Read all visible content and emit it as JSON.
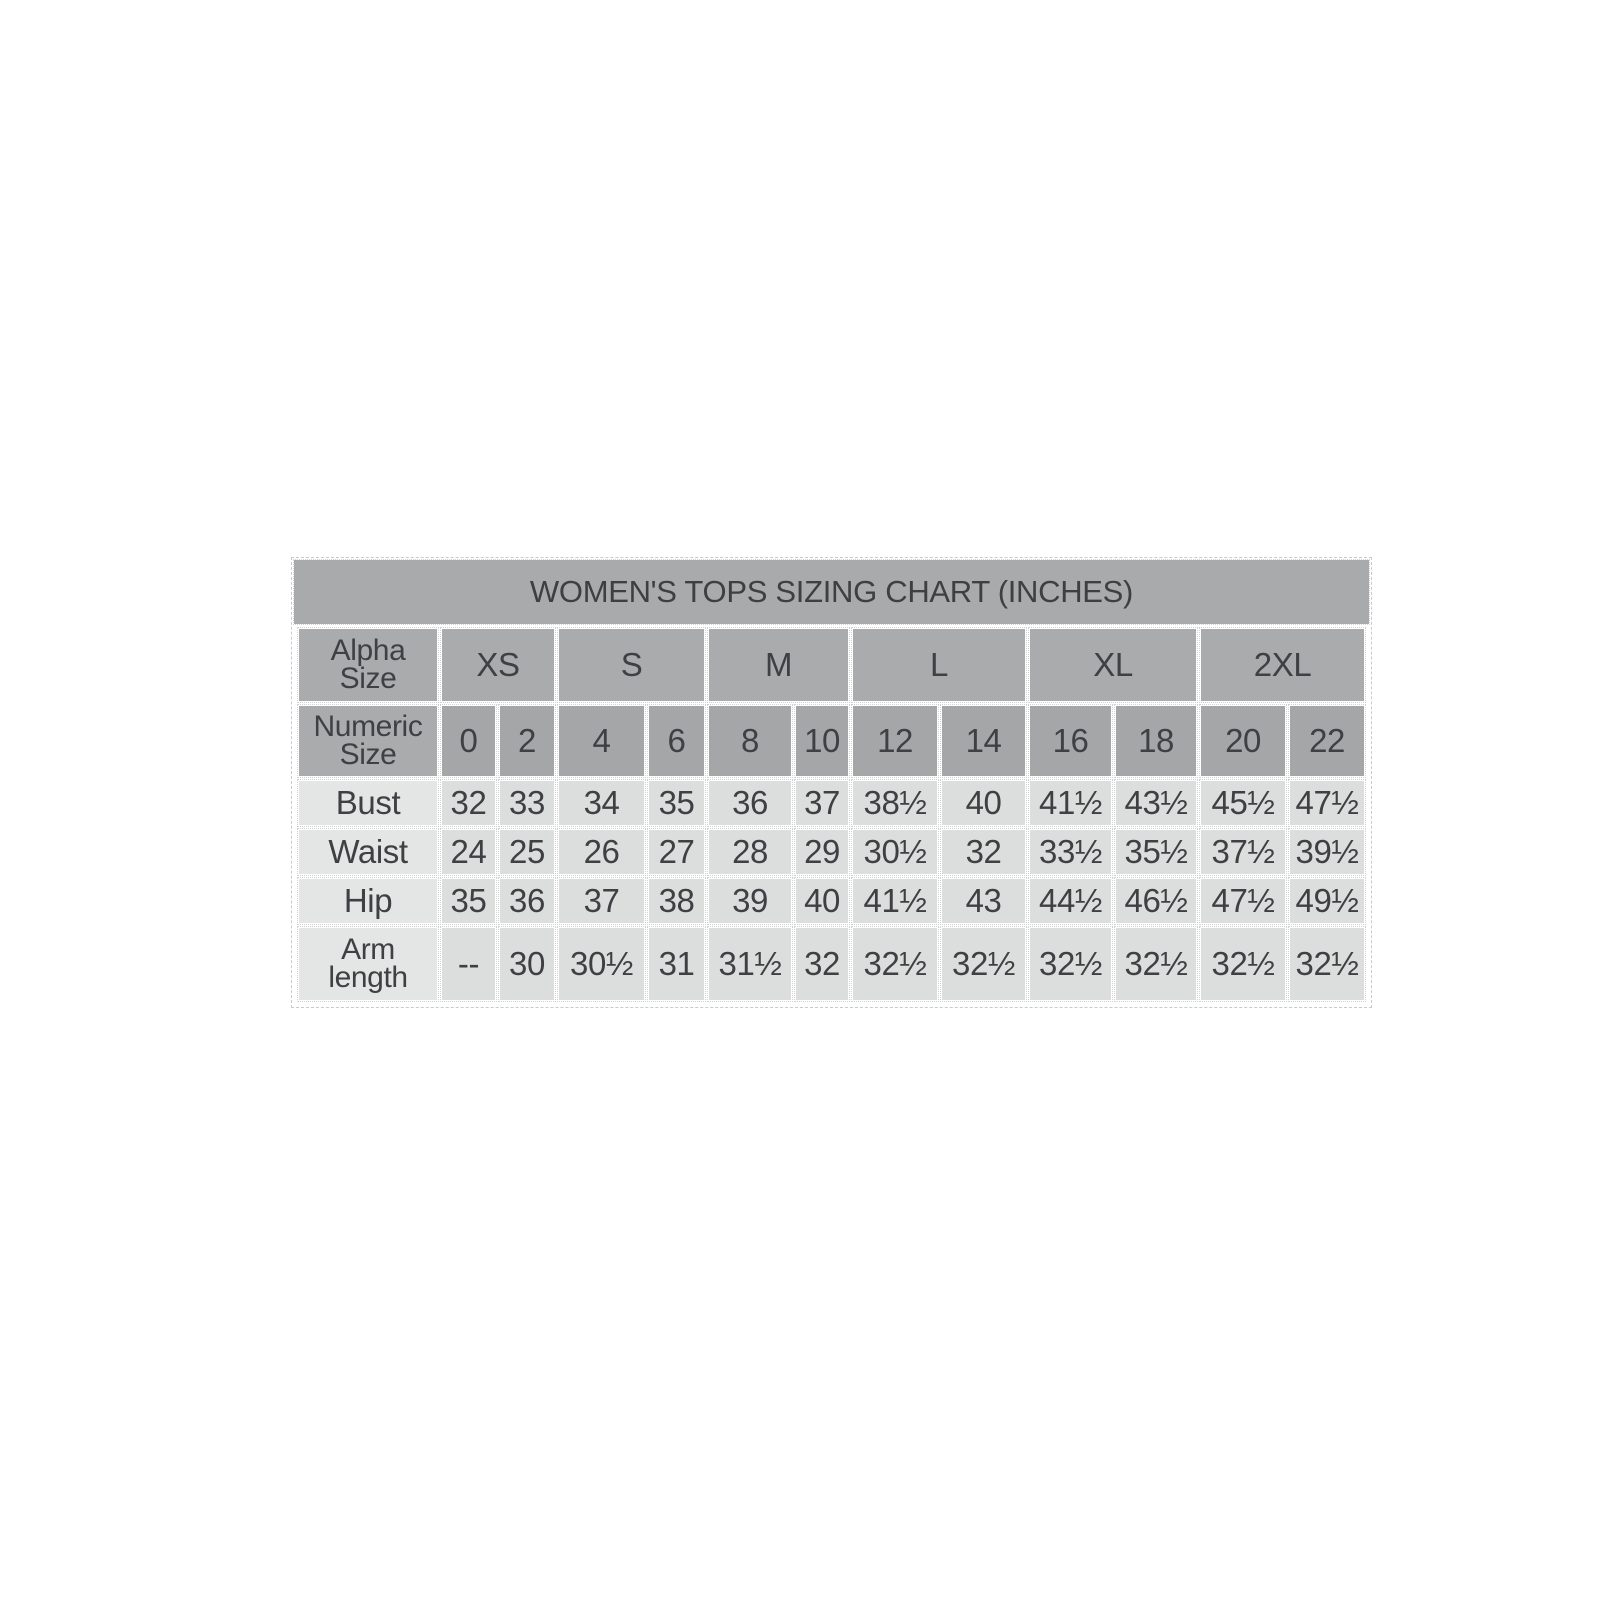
{
  "colors": {
    "page_bg": "#ffffff",
    "title_bg": "#a9aaac",
    "header_cell_bg": "#aaabad",
    "numeric_cell_bg": "#a5a6a8",
    "row_label_bg": "#e4e5e5",
    "data_cell_bg": "#dcdddd",
    "text": "#3e4043",
    "border_dotted": "#d0d1d2"
  },
  "chart_data": {
    "type": "table",
    "title": "WOMEN'S TOPS SIZING CHART (INCHES)",
    "units": "inches",
    "alpha_sizes": {
      "label": [
        "Alpha",
        "Size"
      ],
      "groups": [
        {
          "name": "XS",
          "colspan": 2
        },
        {
          "name": "S",
          "colspan": 2
        },
        {
          "name": "M",
          "colspan": 2
        },
        {
          "name": "L",
          "colspan": 2
        },
        {
          "name": "XL",
          "colspan": 2
        },
        {
          "name": "2XL",
          "colspan": 2
        }
      ]
    },
    "numeric_sizes": {
      "label": [
        "Numeric",
        "Size"
      ],
      "values": [
        "0",
        "2",
        "4",
        "6",
        "8",
        "10",
        "12",
        "14",
        "16",
        "18",
        "20",
        "22"
      ]
    },
    "rows": [
      {
        "label": [
          "Bust"
        ],
        "values": [
          "32",
          "33",
          "34",
          "35",
          "36",
          "37",
          "38½",
          "40",
          "41½",
          "43½",
          "45½",
          "47½"
        ]
      },
      {
        "label": [
          "Waist"
        ],
        "values": [
          "24",
          "25",
          "26",
          "27",
          "28",
          "29",
          "30½",
          "32",
          "33½",
          "35½",
          "37½",
          "39½"
        ]
      },
      {
        "label": [
          "Hip"
        ],
        "values": [
          "35",
          "36",
          "37",
          "38",
          "39",
          "40",
          "41½",
          "43",
          "44½",
          "46½",
          "47½",
          "49½"
        ]
      },
      {
        "label": [
          "Arm",
          "length"
        ],
        "values": [
          "--",
          "30",
          "30½",
          "31",
          "31½",
          "32",
          "32½",
          "32½",
          "32½",
          "32½",
          "32½",
          "32½"
        ]
      }
    ]
  }
}
